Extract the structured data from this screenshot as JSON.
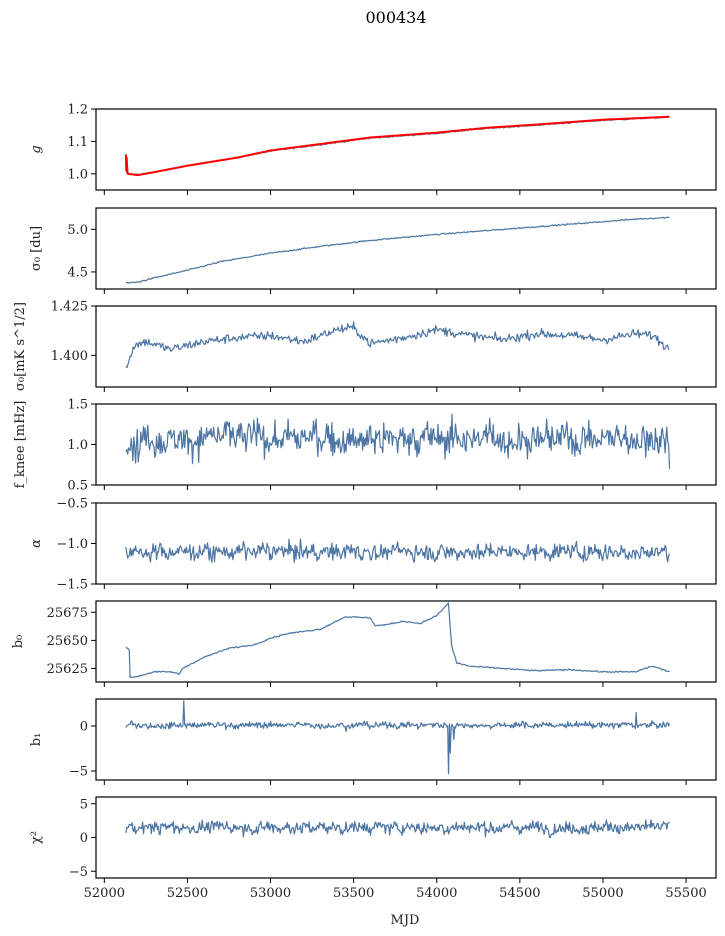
{
  "chart_data": {
    "type": "line",
    "title": "000434",
    "xlabel": "MJD",
    "xlim": [
      51950,
      55680
    ],
    "xticks": [
      52000,
      52500,
      53000,
      53500,
      54000,
      54500,
      55000,
      55500
    ],
    "xtick_labels": [
      "52000",
      "52500",
      "53000",
      "53500",
      "54000",
      "54500",
      "55000",
      "55500"
    ],
    "grid": false,
    "line_color": "#4c75a3",
    "overlay_color": "#ff0000",
    "panels": [
      {
        "id": "g",
        "ylabel": "g",
        "ylim": [
          0.95,
          1.2
        ],
        "yticks": [
          1.0,
          1.1,
          1.2
        ],
        "ytick_labels": [
          "1.0",
          "1.1",
          "1.2"
        ],
        "series": [
          {
            "name": "g",
            "color": "#4c75a3",
            "x": [
              52130,
              52150,
              52200,
              52300,
              52500,
              52800,
              53000,
              53300,
              53600,
              54000,
              54300,
              54600,
              55000,
              55400
            ],
            "y": [
              1.005,
              1.0,
              0.998,
              1.005,
              1.025,
              1.05,
              1.07,
              1.09,
              1.11,
              1.125,
              1.14,
              1.15,
              1.165,
              1.175
            ]
          },
          {
            "name": "g-model",
            "color": "#ff0000",
            "x": [
              52130,
              52132,
              52134,
              52140,
              52200,
              52300,
              52500,
              52800,
              53000,
              53300,
              53600,
              54000,
              54300,
              54600,
              55000,
              55400
            ],
            "y": [
              1.06,
              1.01,
              1.05,
              1.0,
              0.996,
              1.005,
              1.025,
              1.05,
              1.072,
              1.092,
              1.112,
              1.127,
              1.142,
              1.152,
              1.167,
              1.176
            ]
          }
        ]
      },
      {
        "id": "sigma0-du",
        "ylabel": "σ₀ [du]",
        "ylim": [
          4.3,
          5.25
        ],
        "yticks": [
          4.5,
          5.0
        ],
        "ytick_labels": [
          "4.5",
          "5.0"
        ],
        "series": [
          {
            "name": "sigma0_du",
            "color": "#4c75a3",
            "x": [
              52130,
              52200,
              52300,
              52500,
              52700,
              53000,
              53300,
              53600,
              54000,
              54400,
              54800,
              55200,
              55400
            ],
            "y": [
              4.37,
              4.38,
              4.43,
              4.52,
              4.62,
              4.72,
              4.8,
              4.87,
              4.94,
              5.0,
              5.06,
              5.12,
              5.14
            ]
          }
        ]
      },
      {
        "id": "sigma0-mk",
        "ylabel": "σ₀[mK s^1/2]",
        "ylim": [
          1.384,
          1.425
        ],
        "yticks": [
          1.4,
          1.425
        ],
        "ytick_labels": [
          "1.400",
          "1.425"
        ],
        "series": [
          {
            "name": "sigma0_mK",
            "color": "#4c75a3",
            "x": [
              52130,
              52150,
              52180,
              52250,
              52400,
              52600,
              52800,
              53000,
              53200,
              53400,
              53500,
              53600,
              53800,
              54000,
              54200,
              54400,
              54600,
              54800,
              55000,
              55200,
              55300,
              55400
            ],
            "y": [
              1.394,
              1.398,
              1.405,
              1.407,
              1.403,
              1.407,
              1.409,
              1.41,
              1.407,
              1.413,
              1.414,
              1.406,
              1.409,
              1.413,
              1.41,
              1.408,
              1.411,
              1.41,
              1.408,
              1.411,
              1.41,
              1.403
            ]
          }
        ]
      },
      {
        "id": "fknee",
        "ylabel": "f_knee [mHz]",
        "ylim": [
          0.5,
          1.5
        ],
        "yticks": [
          0.5,
          1.0,
          1.5
        ],
        "ytick_labels": [
          "0.5",
          "1.0",
          "1.5"
        ],
        "series": [
          {
            "name": "fknee",
            "color": "#4c75a3",
            "noise": true,
            "x_start": 52130,
            "x_end": 55400,
            "mean": 1.08,
            "spread": 0.2,
            "y_end": 0.7
          }
        ]
      },
      {
        "id": "alpha",
        "ylabel": "α",
        "ylim": [
          -1.5,
          -0.5
        ],
        "yticks": [
          -1.5,
          -1.0,
          -0.5
        ],
        "ytick_labels": [
          "−1.5",
          "−1.0",
          "−0.5"
        ],
        "series": [
          {
            "name": "alpha",
            "color": "#4c75a3",
            "noise": true,
            "x_start": 52130,
            "x_end": 55400,
            "mean": -1.1,
            "spread": 0.1,
            "min": -1.5,
            "max": -0.75
          }
        ]
      },
      {
        "id": "b0",
        "ylabel": "b₀",
        "ylim": [
          25613,
          25685
        ],
        "yticks": [
          25625,
          25650,
          25675
        ],
        "ytick_labels": [
          "25625",
          "25650",
          "25675"
        ],
        "series": [
          {
            "name": "b0",
            "color": "#4c75a3",
            "x": [
              52130,
              52150,
              52155,
              52200,
              52300,
              52400,
              52450,
              52470,
              52600,
              52750,
              52900,
              53000,
              53100,
              53300,
              53450,
              53600,
              53630,
              53700,
              53800,
              53900,
              54000,
              54070,
              54090,
              54120,
              54200,
              54400,
              54600,
              54800,
              55000,
              55200,
              55250,
              55300,
              55400
            ],
            "y": [
              25644,
              25642,
              25617,
              25618,
              25622,
              25622,
              25620,
              25625,
              25635,
              25643,
              25646,
              25652,
              25656,
              25660,
              25671,
              25670,
              25663,
              25664,
              25667,
              25665,
              25672,
              25683,
              25645,
              25630,
              25627,
              25625,
              25623,
              25624,
              25622,
              25622,
              25625,
              25627,
              25622
            ]
          }
        ]
      },
      {
        "id": "b1",
        "ylabel": "b₁",
        "ylim": [
          -6,
          3
        ],
        "yticks": [
          -5,
          0
        ],
        "ytick_labels": [
          "−5",
          "0"
        ],
        "series": [
          {
            "name": "b1",
            "color": "#4c75a3",
            "noise": true,
            "x_start": 52130,
            "x_end": 55400,
            "mean": 0.1,
            "spread": 0.35,
            "spikes": [
              [
                52480,
                2.8
              ],
              [
                54070,
                -5.3
              ],
              [
                54080,
                -3.0
              ],
              [
                54100,
                -1.5
              ],
              [
                55200,
                1.5
              ]
            ]
          }
        ]
      },
      {
        "id": "chi2",
        "ylabel": "χ²",
        "ylim": [
          -6,
          6
        ],
        "yticks": [
          -5,
          0,
          5
        ],
        "ytick_labels": [
          "−5",
          "0",
          "5"
        ],
        "series": [
          {
            "name": "chi2",
            "color": "#4c75a3",
            "noise": true,
            "x_start": 52130,
            "x_end": 55400,
            "mean": 1.5,
            "spread": 0.9,
            "min": -1.0,
            "max": 4.3
          }
        ]
      }
    ]
  }
}
